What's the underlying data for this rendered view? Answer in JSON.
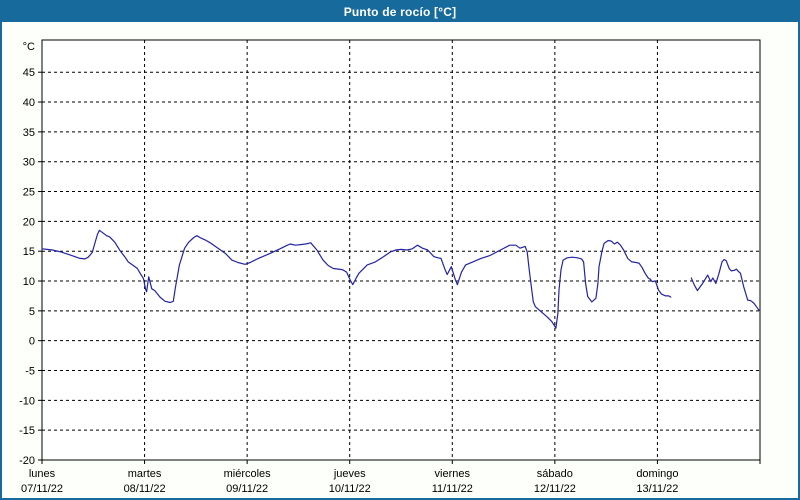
{
  "window": {
    "title": "Punto de rocío [°C]"
  },
  "colors": {
    "titlebar_bg": "#176b9c",
    "window_border": "#176b9c",
    "page_background": "#fcfffa",
    "plot_background": "#ffffff",
    "grid": "#000000",
    "axis": "#000000",
    "line": "#2323a8",
    "title_text": "#ffffff"
  },
  "chart_data": {
    "type": "line",
    "title": "Punto de rocío [°C]",
    "ylabel": "°C",
    "xlabel": "",
    "grid": "dashed",
    "legend_position": "none",
    "ylim": [
      -20,
      50.4
    ],
    "yticks": [
      45,
      40,
      35,
      30,
      25,
      20,
      15,
      10,
      5,
      0,
      -5,
      -10,
      -15,
      -20
    ],
    "x_range_days": [
      0,
      7
    ],
    "x_days": [
      {
        "name": "lunes",
        "date": "07/11/22"
      },
      {
        "name": "martes",
        "date": "08/11/22"
      },
      {
        "name": "miércoles",
        "date": "09/11/22"
      },
      {
        "name": "jueves",
        "date": "10/11/22"
      },
      {
        "name": "viernes",
        "date": "11/11/22"
      },
      {
        "name": "sábado",
        "date": "12/11/22"
      },
      {
        "name": "domingo",
        "date": "13/11/22"
      }
    ],
    "series": [
      {
        "name": "Punto de rocío",
        "color": "#2323a8",
        "segments": [
          [
            [
              0.0,
              15.4
            ],
            [
              0.05,
              15.3
            ],
            [
              0.1,
              15.2
            ],
            [
              0.18,
              14.9
            ],
            [
              0.27,
              14.4
            ],
            [
              0.37,
              13.8
            ],
            [
              0.42,
              13.7
            ],
            [
              0.45,
              14.0
            ],
            [
              0.49,
              14.8
            ],
            [
              0.51,
              16.0
            ],
            [
              0.54,
              17.8
            ],
            [
              0.56,
              18.5
            ],
            [
              0.6,
              18.0
            ],
            [
              0.63,
              17.6
            ],
            [
              0.66,
              17.4
            ],
            [
              0.71,
              16.5
            ],
            [
              0.76,
              15.1
            ],
            [
              0.81,
              14.0
            ],
            [
              0.84,
              13.2
            ],
            [
              0.89,
              12.6
            ],
            [
              0.93,
              12.1
            ],
            [
              0.96,
              11.2
            ],
            [
              0.99,
              10.4
            ],
            [
              1.01,
              8.6
            ],
            [
              1.02,
              8.2
            ],
            [
              1.04,
              10.7
            ],
            [
              1.07,
              8.7
            ],
            [
              1.1,
              8.4
            ],
            [
              1.15,
              7.3
            ],
            [
              1.2,
              6.6
            ],
            [
              1.25,
              6.4
            ],
            [
              1.28,
              6.6
            ],
            [
              1.3,
              8.8
            ],
            [
              1.34,
              12.7
            ],
            [
              1.39,
              15.5
            ],
            [
              1.43,
              16.5
            ],
            [
              1.48,
              17.3
            ],
            [
              1.51,
              17.6
            ],
            [
              1.55,
              17.2
            ],
            [
              1.59,
              16.9
            ],
            [
              1.64,
              16.4
            ],
            [
              1.69,
              15.8
            ],
            [
              1.74,
              15.2
            ],
            [
              1.79,
              14.6
            ],
            [
              1.85,
              13.5
            ],
            [
              1.91,
              13.1
            ],
            [
              1.98,
              12.8
            ],
            [
              2.03,
              13.1
            ],
            [
              2.11,
              13.8
            ],
            [
              2.22,
              14.6
            ],
            [
              2.32,
              15.4
            ],
            [
              2.38,
              15.9
            ],
            [
              2.42,
              16.2
            ],
            [
              2.47,
              16.0
            ],
            [
              2.52,
              16.1
            ],
            [
              2.57,
              16.2
            ],
            [
              2.62,
              16.4
            ],
            [
              2.68,
              15.2
            ],
            [
              2.74,
              13.5
            ],
            [
              2.79,
              12.6
            ],
            [
              2.84,
              12.1
            ],
            [
              2.89,
              12.0
            ],
            [
              2.93,
              11.9
            ],
            [
              2.97,
              11.5
            ],
            [
              3.01,
              10.0
            ],
            [
              3.03,
              9.4
            ],
            [
              3.06,
              10.4
            ],
            [
              3.09,
              11.3
            ],
            [
              3.17,
              12.7
            ],
            [
              3.25,
              13.2
            ],
            [
              3.33,
              14.1
            ],
            [
              3.4,
              14.9
            ],
            [
              3.45,
              15.2
            ],
            [
              3.5,
              15.3
            ],
            [
              3.56,
              15.2
            ],
            [
              3.61,
              15.4
            ],
            [
              3.66,
              16.0
            ],
            [
              3.71,
              15.5
            ],
            [
              3.76,
              15.2
            ],
            [
              3.82,
              14.1
            ],
            [
              3.86,
              13.9
            ],
            [
              3.89,
              13.8
            ],
            [
              3.93,
              11.9
            ],
            [
              3.95,
              11.1
            ],
            [
              3.99,
              12.4
            ],
            [
              4.03,
              10.2
            ],
            [
              4.05,
              9.4
            ],
            [
              4.09,
              11.5
            ],
            [
              4.13,
              12.7
            ],
            [
              4.2,
              13.2
            ],
            [
              4.28,
              13.8
            ],
            [
              4.37,
              14.3
            ],
            [
              4.47,
              15.2
            ],
            [
              4.56,
              16.0
            ],
            [
              4.62,
              16.0
            ],
            [
              4.66,
              15.5
            ],
            [
              4.71,
              15.8
            ],
            [
              4.73,
              14.9
            ],
            [
              4.75,
              11.9
            ],
            [
              4.77,
              9.1
            ],
            [
              4.79,
              6.5
            ],
            [
              4.81,
              5.7
            ],
            [
              4.85,
              5.1
            ],
            [
              4.89,
              4.5
            ],
            [
              4.93,
              3.9
            ],
            [
              4.97,
              3.2
            ],
            [
              5.0,
              2.4
            ],
            [
              5.01,
              2.1
            ],
            [
              5.03,
              4.6
            ],
            [
              5.04,
              8.5
            ],
            [
              5.06,
              11.9
            ],
            [
              5.08,
              13.5
            ],
            [
              5.12,
              13.9
            ],
            [
              5.17,
              14.0
            ],
            [
              5.22,
              13.9
            ],
            [
              5.26,
              13.7
            ],
            [
              5.28,
              13.2
            ],
            [
              5.3,
              9.6
            ],
            [
              5.32,
              7.4
            ],
            [
              5.36,
              6.5
            ],
            [
              5.4,
              7.1
            ],
            [
              5.42,
              9.6
            ],
            [
              5.43,
              12.4
            ],
            [
              5.46,
              15.0
            ],
            [
              5.48,
              16.3
            ],
            [
              5.52,
              16.8
            ],
            [
              5.55,
              16.7
            ],
            [
              5.58,
              16.2
            ],
            [
              5.61,
              16.5
            ],
            [
              5.64,
              16.0
            ],
            [
              5.67,
              15.2
            ],
            [
              5.71,
              13.8
            ],
            [
              5.75,
              13.2
            ],
            [
              5.79,
              13.1
            ],
            [
              5.82,
              13.0
            ],
            [
              5.85,
              12.3
            ],
            [
              5.88,
              11.3
            ],
            [
              5.91,
              10.5
            ],
            [
              5.93,
              10.3
            ],
            [
              5.95,
              9.9
            ],
            [
              5.98,
              10.0
            ],
            [
              6.01,
              8.5
            ],
            [
              6.04,
              7.8
            ],
            [
              6.08,
              7.5
            ],
            [
              6.11,
              7.5
            ],
            [
              6.13,
              7.3
            ]
          ],
          [
            [
              6.33,
              10.5
            ],
            [
              6.36,
              9.3
            ],
            [
              6.39,
              8.4
            ],
            [
              6.44,
              9.6
            ],
            [
              6.49,
              11.0
            ],
            [
              6.52,
              9.9
            ],
            [
              6.54,
              10.5
            ],
            [
              6.57,
              9.6
            ],
            [
              6.6,
              11.3
            ],
            [
              6.63,
              13.2
            ],
            [
              6.65,
              13.6
            ],
            [
              6.67,
              13.4
            ],
            [
              6.7,
              12.1
            ],
            [
              6.72,
              11.7
            ],
            [
              6.75,
              11.8
            ],
            [
              6.77,
              12.0
            ],
            [
              6.79,
              11.6
            ],
            [
              6.81,
              11.3
            ],
            [
              6.84,
              9.1
            ],
            [
              6.88,
              6.8
            ],
            [
              6.91,
              6.7
            ],
            [
              6.94,
              6.3
            ],
            [
              6.97,
              5.6
            ],
            [
              6.99,
              5.1
            ]
          ]
        ]
      }
    ]
  }
}
